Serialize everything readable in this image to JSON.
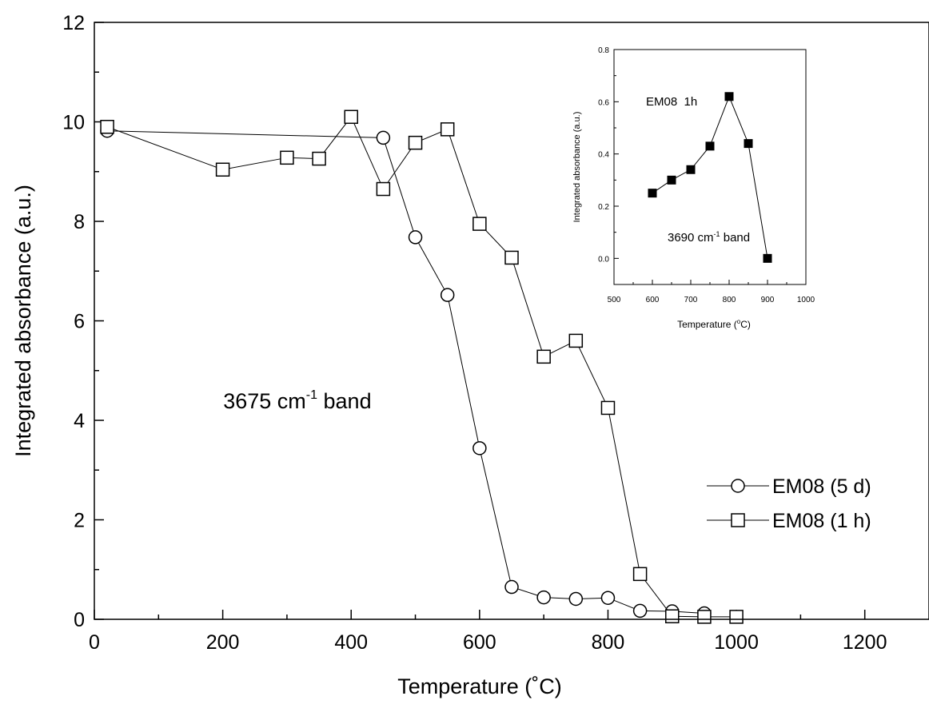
{
  "chart_data": [
    {
      "type": "line",
      "title": "",
      "xlabel": "Temperature (˚C)",
      "ylabel": "Integrated absorbance (a.u.)",
      "xlim": [
        0,
        1300
      ],
      "ylim": [
        0,
        12
      ],
      "xticks": [
        "0",
        "200",
        "400",
        "600",
        "800",
        "1000",
        "1200"
      ],
      "yticks": [
        "0",
        "2",
        "4",
        "6",
        "8",
        "10",
        "12"
      ],
      "grid": false,
      "legend": "right",
      "annotation": {
        "text": "3675 cm",
        "sup": "-1",
        "suffix": " band"
      },
      "series": [
        {
          "name": "EM08 (5 d)",
          "marker": "open-circle",
          "x": [
            20,
            450,
            500,
            550,
            600,
            650,
            700,
            750,
            800,
            850,
            900,
            950
          ],
          "y": [
            9.82,
            9.68,
            7.68,
            6.52,
            3.44,
            0.65,
            0.44,
            0.41,
            0.43,
            0.17,
            0.16,
            0.12
          ]
        },
        {
          "name": "EM08 (1 h)",
          "marker": "open-square",
          "x": [
            20,
            200,
            300,
            350,
            400,
            450,
            500,
            550,
            600,
            650,
            700,
            750,
            800,
            850,
            900,
            950,
            1000
          ],
          "y": [
            9.9,
            9.04,
            9.28,
            9.26,
            10.1,
            8.65,
            9.58,
            9.85,
            7.95,
            7.27,
            5.28,
            5.6,
            4.25,
            0.91,
            0.06,
            0.05,
            0.05
          ]
        }
      ]
    },
    {
      "type": "line",
      "title": "",
      "xlabel": "Temperature (",
      "xlabel_sup": "o",
      "xlabel_suffix": "C)",
      "ylabel": "Integrated absorbance (a.u.)",
      "xlim": [
        500,
        1000
      ],
      "ylim": [
        -0.1,
        0.8
      ],
      "xticks": [
        "500",
        "600",
        "700",
        "800",
        "900",
        "1000"
      ],
      "yticks": [
        "0.0",
        "0.2",
        "0.4",
        "0.6",
        "0.8"
      ],
      "grid": false,
      "label": "EM08  1h",
      "annotation": {
        "text": "3690 cm",
        "sup": "-1",
        "suffix": " band"
      },
      "series": [
        {
          "marker": "filled-square",
          "x": [
            600,
            650,
            700,
            750,
            800,
            850,
            900
          ],
          "y": [
            0.25,
            0.3,
            0.34,
            0.43,
            0.62,
            0.44,
            0.0
          ]
        }
      ]
    }
  ]
}
